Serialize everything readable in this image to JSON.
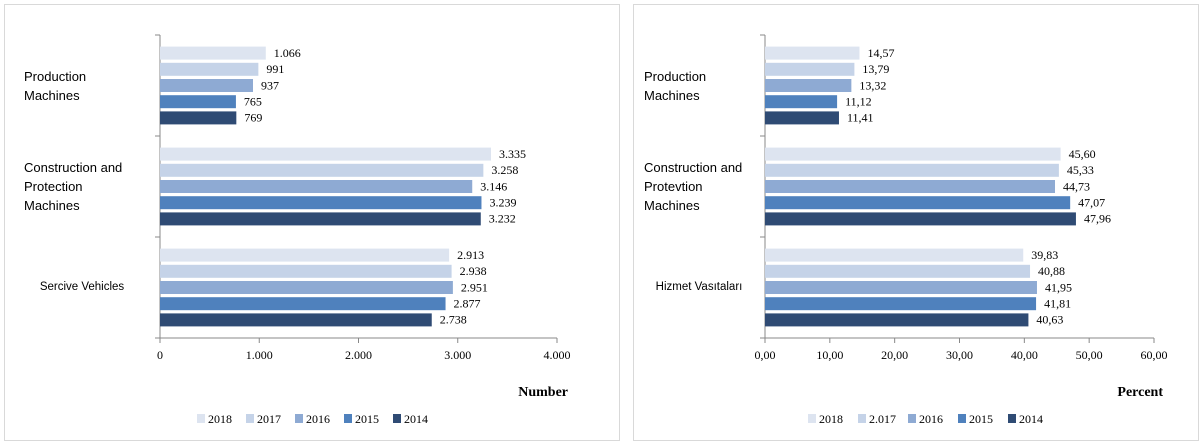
{
  "chart_data": [
    {
      "type": "hbar",
      "axis_label": "Number",
      "categories": [
        "Production Machines",
        "Construction and Protection Machines",
        "Sercive Vehicles"
      ],
      "series": [
        {
          "name": "2018",
          "color": "#dde4f0",
          "values": [
            1066,
            3335,
            2913
          ],
          "value_labels": [
            "1.066",
            "3.335",
            "2.913"
          ]
        },
        {
          "name": "2017",
          "color": "#c5d3e8",
          "values": [
            991,
            3258,
            2938
          ],
          "value_labels": [
            "991",
            "3.258",
            "2.938"
          ]
        },
        {
          "name": "2016",
          "color": "#8eaad3",
          "values": [
            937,
            3146,
            2951
          ],
          "value_labels": [
            "937",
            "3.146",
            "2.951"
          ]
        },
        {
          "name": "2015",
          "color": "#4f81bd",
          "values": [
            765,
            3239,
            2877
          ],
          "value_labels": [
            "765",
            "3.239",
            "2.877"
          ]
        },
        {
          "name": "2014",
          "color": "#2f4b74",
          "values": [
            769,
            3232,
            2738
          ],
          "value_labels": [
            "769",
            "3.232",
            "2.738"
          ]
        }
      ],
      "xlim": [
        0,
        4000
      ],
      "xticks": [
        0,
        {
          "value": 1000,
          "label": "1.000"
        },
        {
          "value": 2000,
          "label": "2.000"
        },
        {
          "value": 3000,
          "label": "3.000"
        },
        {
          "value": 4000,
          "label": "4.000"
        }
      ],
      "legend": "bottom"
    },
    {
      "type": "hbar",
      "axis_label": "Percent",
      "categories": [
        "Production Machines",
        "Construction and Protevtion Machines",
        "Hizmet Vasıtaları"
      ],
      "series": [
        {
          "name": "2018",
          "color": "#dde4f0",
          "values": [
            14.57,
            45.6,
            39.83
          ],
          "value_labels": [
            "14,57",
            "45,60",
            "39,83"
          ]
        },
        {
          "name": "2.017",
          "color": "#c5d3e8",
          "values": [
            13.79,
            45.33,
            40.88
          ],
          "value_labels": [
            "13,79",
            "45,33",
            "40,88"
          ]
        },
        {
          "name": "2016",
          "color": "#8eaad3",
          "values": [
            13.32,
            44.73,
            41.95
          ],
          "value_labels": [
            "13,32",
            "44,73",
            "41,95"
          ]
        },
        {
          "name": "2015",
          "color": "#4f81bd",
          "values": [
            11.12,
            47.07,
            41.81
          ],
          "value_labels": [
            "11,12",
            "47,07",
            "41,81"
          ]
        },
        {
          "name": "2014",
          "color": "#2f4b74",
          "values": [
            11.41,
            47.96,
            40.63
          ],
          "value_labels": [
            "11,41",
            "47,96",
            "40,63"
          ]
        }
      ],
      "xlim": [
        0,
        60
      ],
      "xticks": [
        {
          "value": 0,
          "label": "0,00"
        },
        {
          "value": 10,
          "label": "10,00"
        },
        {
          "value": 20,
          "label": "20,00"
        },
        {
          "value": 30,
          "label": "30,00"
        },
        {
          "value": 40,
          "label": "40,00"
        },
        {
          "value": 50,
          "label": "50,00"
        },
        {
          "value": 60,
          "label": "60,00"
        }
      ],
      "legend": "bottom"
    }
  ]
}
